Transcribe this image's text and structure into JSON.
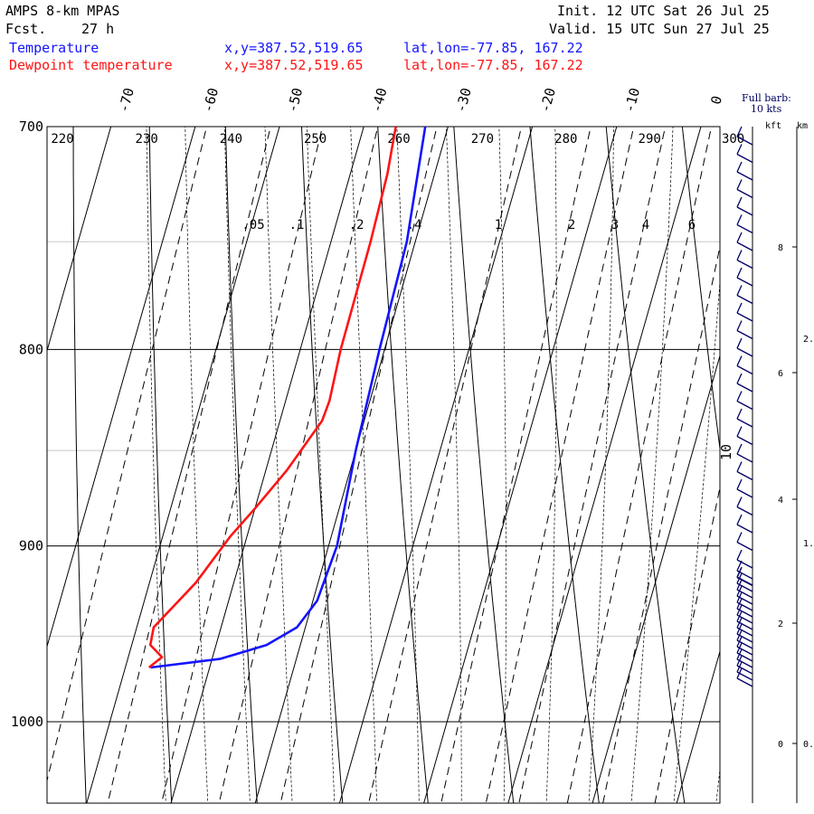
{
  "header": {
    "model": "AMPS 8-km MPAS",
    "fcst_label": "Fcst.",
    "fcst_value": "27 h",
    "init": "Init. 12 UTC Sat 26 Jul 25",
    "valid": "Valid. 15 UTC Sun 27 Jul 25"
  },
  "legend": {
    "temperature": {
      "name": "Temperature",
      "xy": "x,y=387.52,519.65",
      "latlon": "lat,lon=-77.85, 167.22",
      "color": "#1414ff"
    },
    "dewpoint": {
      "name": "Dewpoint temperature",
      "xy": "x,y=387.52,519.65",
      "latlon": "lat,lon=-77.85, 167.22",
      "color": "#ff1414"
    }
  },
  "barb_note": {
    "line1": "Full barb:",
    "line2": "10 kts"
  },
  "height_axis": {
    "kft_label": "kft",
    "km_label": "km",
    "kft_ticks": [
      "8",
      "6",
      "4",
      "2",
      "0"
    ],
    "km_ticks": [
      "2.",
      "1.",
      "0."
    ]
  },
  "chart_data": {
    "type": "skew-t",
    "pressure_axis": {
      "ticks": [
        700,
        800,
        900,
        1000
      ],
      "range": [
        1040,
        700
      ],
      "log_scale": true
    },
    "isotherm_labels": [
      "-70",
      "-60",
      "-50",
      "-40",
      "-30",
      "-20",
      "-10",
      "0"
    ],
    "potential_temperature_labels": [
      "220",
      "230",
      "240",
      "250",
      "260",
      "270",
      "280",
      "290",
      "300"
    ],
    "mixing_ratio_labels": [
      ".05",
      ".1",
      ".2",
      ".4",
      "1",
      "2",
      "3",
      "4",
      "6"
    ],
    "side_label": "10",
    "series": [
      {
        "name": "Temperature",
        "color": "#1414ff",
        "points": [
          [
            700,
            -32.7
          ],
          [
            750,
            -31.0
          ],
          [
            800,
            -30.6
          ],
          [
            850,
            -30.0
          ],
          [
            900,
            -29.0
          ],
          [
            930,
            -29.5
          ],
          [
            945,
            -31.0
          ],
          [
            955,
            -34.0
          ],
          [
            963,
            -39.0
          ],
          [
            968,
            -47.0
          ]
        ]
      },
      {
        "name": "Dewpoint temperature",
        "color": "#ff1414",
        "points": [
          [
            700,
            -36.2
          ],
          [
            720,
            -35.6
          ],
          [
            750,
            -35.3
          ],
          [
            800,
            -35.2
          ],
          [
            825,
            -34.8
          ],
          [
            835,
            -35.0
          ],
          [
            860,
            -37.5
          ],
          [
            880,
            -40.0
          ],
          [
            895,
            -42.0
          ],
          [
            920,
            -44.5
          ],
          [
            945,
            -48.0
          ],
          [
            955,
            -47.8
          ],
          [
            962,
            -46.0
          ],
          [
            968,
            -47.2
          ]
        ]
      }
    ],
    "wind_barbs": {
      "direction_deg": 250,
      "speed_kts": 10,
      "count_upper": 26,
      "count_lower": 18
    }
  }
}
